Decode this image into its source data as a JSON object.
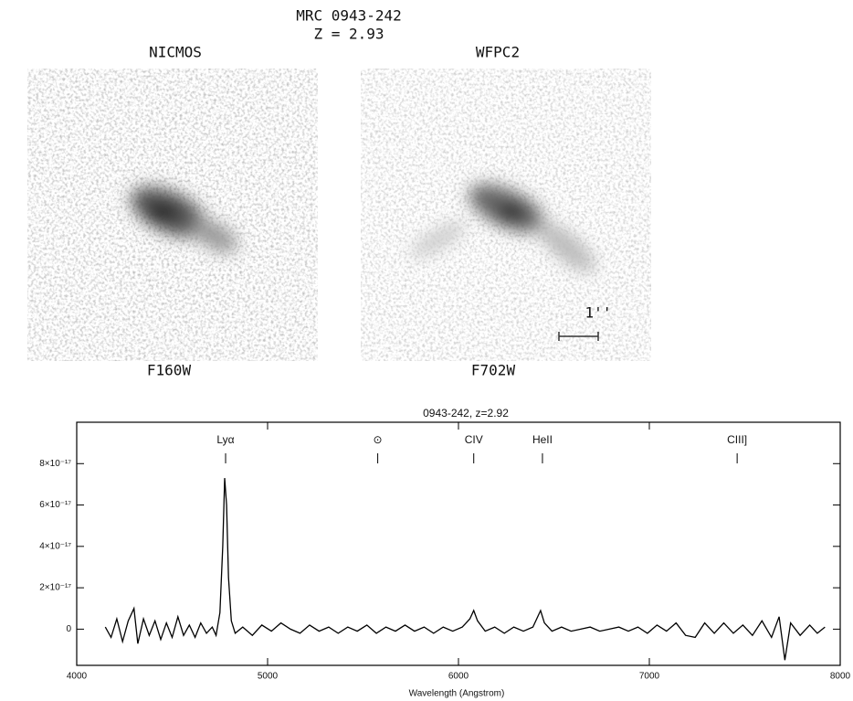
{
  "header": {
    "title": "MRC 0943-242",
    "redshift": "Z = 2.93"
  },
  "panels": [
    {
      "instrument": "NICMOS",
      "filter": "F160W"
    },
    {
      "instrument": "WFPC2",
      "filter": "F702W",
      "scale_label": "1''"
    }
  ],
  "chart_data": {
    "type": "line",
    "title": "0943-242, z=2.92",
    "x_label": "Wavelength (Angstrom)",
    "xlim": [
      4000,
      8000
    ],
    "xticks": [
      4000,
      5000,
      6000,
      7000,
      8000
    ],
    "ylim": [
      -1.75e-17,
      1e-16
    ],
    "yticks": [
      {
        "value": 0,
        "label": "0"
      },
      {
        "value": 2e-17,
        "label": "2×10⁻¹⁷"
      },
      {
        "value": 4e-17,
        "label": "4×10⁻¹⁷"
      },
      {
        "value": 6e-17,
        "label": "6×10⁻¹⁷"
      },
      {
        "value": 8e-17,
        "label": "8×10⁻¹⁷"
      }
    ],
    "lines": [
      {
        "label": "Lyα",
        "x": 4780
      },
      {
        "label": "⊙",
        "x": 5577
      },
      {
        "label": "CIV",
        "x": 6080
      },
      {
        "label": "HeII",
        "x": 6440
      },
      {
        "label": "CIII]",
        "x": 7460
      }
    ],
    "x": [
      4150,
      4180,
      4210,
      4240,
      4270,
      4300,
      4320,
      4350,
      4380,
      4410,
      4440,
      4470,
      4500,
      4530,
      4560,
      4590,
      4620,
      4650,
      4680,
      4710,
      4730,
      4750,
      4765,
      4775,
      4785,
      4795,
      4810,
      4830,
      4870,
      4920,
      4970,
      5020,
      5070,
      5120,
      5170,
      5220,
      5270,
      5320,
      5370,
      5420,
      5470,
      5520,
      5570,
      5620,
      5670,
      5720,
      5770,
      5820,
      5870,
      5920,
      5970,
      6020,
      6060,
      6080,
      6100,
      6140,
      6190,
      6240,
      6290,
      6340,
      6390,
      6430,
      6450,
      6490,
      6540,
      6590,
      6640,
      6690,
      6740,
      6790,
      6840,
      6890,
      6940,
      6990,
      7040,
      7090,
      7140,
      7190,
      7240,
      7290,
      7340,
      7390,
      7440,
      7490,
      7540,
      7590,
      7640,
      7680,
      7710,
      7740,
      7790,
      7840,
      7880,
      7920
    ],
    "series": [
      {
        "color": "#000000",
        "values": [
          1e-18,
          -4e-18,
          5e-18,
          -6e-18,
          4e-18,
          1e-17,
          -7e-18,
          5e-18,
          -3e-18,
          4e-18,
          -5e-18,
          3e-18,
          -4e-18,
          6e-18,
          -3e-18,
          2e-18,
          -4e-18,
          3e-18,
          -2e-18,
          1e-18,
          -3e-18,
          8e-18,
          4e-17,
          7.3e-17,
          6e-17,
          2.5e-17,
          4e-18,
          -2e-18,
          1e-18,
          -3e-18,
          2e-18,
          -1e-18,
          3e-18,
          0,
          -2e-18,
          2e-18,
          -1e-18,
          1e-18,
          -2e-18,
          1e-18,
          -1e-18,
          2e-18,
          -2e-18,
          1e-18,
          -1e-18,
          2e-18,
          -1e-18,
          1e-18,
          -2e-18,
          1e-18,
          -1e-18,
          1e-18,
          5e-18,
          9e-18,
          4e-18,
          -1e-18,
          1e-18,
          -2e-18,
          1e-18,
          -1e-18,
          1e-18,
          9e-18,
          3e-18,
          -1e-18,
          1e-18,
          -1e-18,
          0,
          1e-18,
          -1e-18,
          0,
          1e-18,
          -1e-18,
          1e-18,
          -2e-18,
          2e-18,
          -1e-18,
          3e-18,
          -3e-18,
          -4e-18,
          3e-18,
          -2e-18,
          3e-18,
          -2e-18,
          2e-18,
          -3e-18,
          4e-18,
          -4e-18,
          6e-18,
          -1.5e-17,
          3e-18,
          -3e-18,
          2e-18,
          -2e-18,
          1e-18
        ]
      }
    ]
  }
}
